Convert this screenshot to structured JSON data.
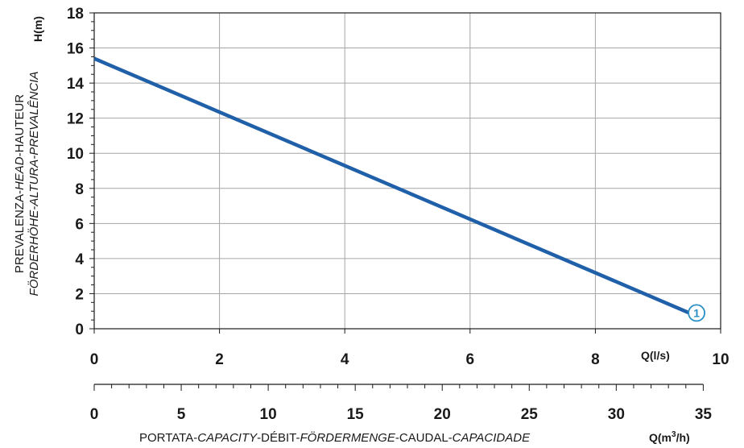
{
  "chart_data": {
    "type": "line",
    "x": [
      0,
      9.5
    ],
    "series": [
      {
        "label": "1",
        "x": [
          0,
          9.5
        ],
        "y": [
          15.4,
          0.9
        ],
        "color": "#2060a8"
      }
    ],
    "ylim": [
      0,
      18
    ],
    "xlim": [
      0,
      10
    ],
    "y_ticks": [
      0,
      2,
      4,
      6,
      8,
      10,
      12,
      14,
      16,
      18
    ],
    "x_ticks_primary": [
      0,
      2,
      4,
      6,
      8,
      10
    ],
    "x_ticks_secondary": [
      0,
      5,
      10,
      15,
      20,
      25,
      30,
      35
    ],
    "secondary_scale": 3.6,
    "ylabel_unit": "H(m)",
    "ylabel_line1": "PREVALENZA-HEAD-HAUTEUR",
    "ylabel_line1_parts": [
      "PREVALENZA-",
      "HEAD",
      "-HAUTEUR"
    ],
    "ylabel_line2": "FÖRDERHÖHE-ALTURA-PREVALÊNCIA",
    "xlabel_primary_unit": "Q(l/s)",
    "xlabel_secondary_unit_base": "Q(m",
    "xlabel_secondary_unit_sup": "3",
    "xlabel_secondary_unit_end": "/h)",
    "xlabel_secondary_parts": [
      "PORTATA-",
      "CAPACITY",
      "-DÉBIT-",
      "FÖRDERMENGE",
      "-CAUDAL-",
      "CAPACIDADE"
    ],
    "grid": true,
    "line_color": "#2060a8",
    "grid_color": "#a6a6a6",
    "axis_color": "#1a1a1a"
  }
}
